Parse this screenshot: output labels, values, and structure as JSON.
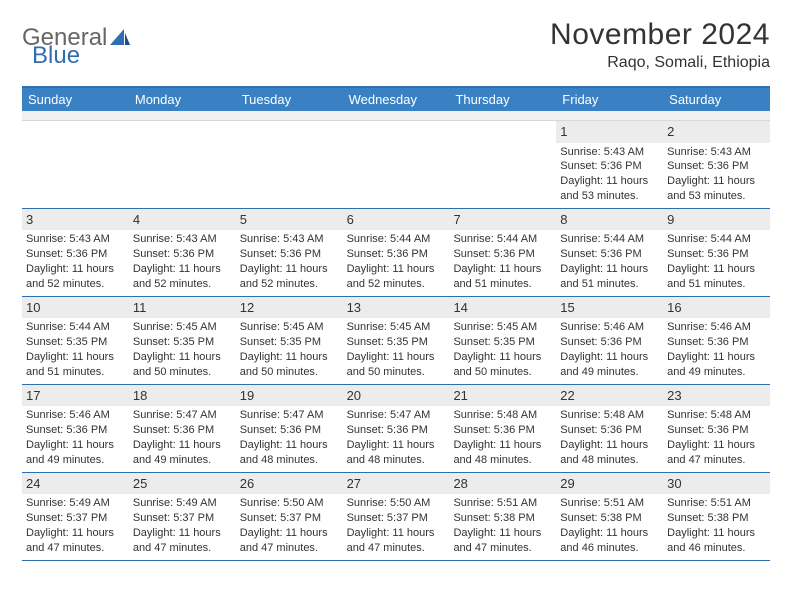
{
  "brand": {
    "part1": "General",
    "part2": "Blue"
  },
  "header": {
    "month": "November 2024",
    "location": "Raqo, Somali, Ethiopia"
  },
  "colors": {
    "header_bar": "#3a81c4",
    "rule": "#2f6fb0",
    "daynum_bg": "#ececec",
    "text": "#333333",
    "background": "#ffffff"
  },
  "weekdays": [
    "Sunday",
    "Monday",
    "Tuesday",
    "Wednesday",
    "Thursday",
    "Friday",
    "Saturday"
  ],
  "weeks": [
    [
      {
        "n": "",
        "sunrise": "",
        "sunset": "",
        "daylight1": "",
        "daylight2": ""
      },
      {
        "n": "",
        "sunrise": "",
        "sunset": "",
        "daylight1": "",
        "daylight2": ""
      },
      {
        "n": "",
        "sunrise": "",
        "sunset": "",
        "daylight1": "",
        "daylight2": ""
      },
      {
        "n": "",
        "sunrise": "",
        "sunset": "",
        "daylight1": "",
        "daylight2": ""
      },
      {
        "n": "",
        "sunrise": "",
        "sunset": "",
        "daylight1": "",
        "daylight2": ""
      },
      {
        "n": "1",
        "sunrise": "Sunrise: 5:43 AM",
        "sunset": "Sunset: 5:36 PM",
        "daylight1": "Daylight: 11 hours",
        "daylight2": "and 53 minutes."
      },
      {
        "n": "2",
        "sunrise": "Sunrise: 5:43 AM",
        "sunset": "Sunset: 5:36 PM",
        "daylight1": "Daylight: 11 hours",
        "daylight2": "and 53 minutes."
      }
    ],
    [
      {
        "n": "3",
        "sunrise": "Sunrise: 5:43 AM",
        "sunset": "Sunset: 5:36 PM",
        "daylight1": "Daylight: 11 hours",
        "daylight2": "and 52 minutes."
      },
      {
        "n": "4",
        "sunrise": "Sunrise: 5:43 AM",
        "sunset": "Sunset: 5:36 PM",
        "daylight1": "Daylight: 11 hours",
        "daylight2": "and 52 minutes."
      },
      {
        "n": "5",
        "sunrise": "Sunrise: 5:43 AM",
        "sunset": "Sunset: 5:36 PM",
        "daylight1": "Daylight: 11 hours",
        "daylight2": "and 52 minutes."
      },
      {
        "n": "6",
        "sunrise": "Sunrise: 5:44 AM",
        "sunset": "Sunset: 5:36 PM",
        "daylight1": "Daylight: 11 hours",
        "daylight2": "and 52 minutes."
      },
      {
        "n": "7",
        "sunrise": "Sunrise: 5:44 AM",
        "sunset": "Sunset: 5:36 PM",
        "daylight1": "Daylight: 11 hours",
        "daylight2": "and 51 minutes."
      },
      {
        "n": "8",
        "sunrise": "Sunrise: 5:44 AM",
        "sunset": "Sunset: 5:36 PM",
        "daylight1": "Daylight: 11 hours",
        "daylight2": "and 51 minutes."
      },
      {
        "n": "9",
        "sunrise": "Sunrise: 5:44 AM",
        "sunset": "Sunset: 5:36 PM",
        "daylight1": "Daylight: 11 hours",
        "daylight2": "and 51 minutes."
      }
    ],
    [
      {
        "n": "10",
        "sunrise": "Sunrise: 5:44 AM",
        "sunset": "Sunset: 5:35 PM",
        "daylight1": "Daylight: 11 hours",
        "daylight2": "and 51 minutes."
      },
      {
        "n": "11",
        "sunrise": "Sunrise: 5:45 AM",
        "sunset": "Sunset: 5:35 PM",
        "daylight1": "Daylight: 11 hours",
        "daylight2": "and 50 minutes."
      },
      {
        "n": "12",
        "sunrise": "Sunrise: 5:45 AM",
        "sunset": "Sunset: 5:35 PM",
        "daylight1": "Daylight: 11 hours",
        "daylight2": "and 50 minutes."
      },
      {
        "n": "13",
        "sunrise": "Sunrise: 5:45 AM",
        "sunset": "Sunset: 5:35 PM",
        "daylight1": "Daylight: 11 hours",
        "daylight2": "and 50 minutes."
      },
      {
        "n": "14",
        "sunrise": "Sunrise: 5:45 AM",
        "sunset": "Sunset: 5:35 PM",
        "daylight1": "Daylight: 11 hours",
        "daylight2": "and 50 minutes."
      },
      {
        "n": "15",
        "sunrise": "Sunrise: 5:46 AM",
        "sunset": "Sunset: 5:36 PM",
        "daylight1": "Daylight: 11 hours",
        "daylight2": "and 49 minutes."
      },
      {
        "n": "16",
        "sunrise": "Sunrise: 5:46 AM",
        "sunset": "Sunset: 5:36 PM",
        "daylight1": "Daylight: 11 hours",
        "daylight2": "and 49 minutes."
      }
    ],
    [
      {
        "n": "17",
        "sunrise": "Sunrise: 5:46 AM",
        "sunset": "Sunset: 5:36 PM",
        "daylight1": "Daylight: 11 hours",
        "daylight2": "and 49 minutes."
      },
      {
        "n": "18",
        "sunrise": "Sunrise: 5:47 AM",
        "sunset": "Sunset: 5:36 PM",
        "daylight1": "Daylight: 11 hours",
        "daylight2": "and 49 minutes."
      },
      {
        "n": "19",
        "sunrise": "Sunrise: 5:47 AM",
        "sunset": "Sunset: 5:36 PM",
        "daylight1": "Daylight: 11 hours",
        "daylight2": "and 48 minutes."
      },
      {
        "n": "20",
        "sunrise": "Sunrise: 5:47 AM",
        "sunset": "Sunset: 5:36 PM",
        "daylight1": "Daylight: 11 hours",
        "daylight2": "and 48 minutes."
      },
      {
        "n": "21",
        "sunrise": "Sunrise: 5:48 AM",
        "sunset": "Sunset: 5:36 PM",
        "daylight1": "Daylight: 11 hours",
        "daylight2": "and 48 minutes."
      },
      {
        "n": "22",
        "sunrise": "Sunrise: 5:48 AM",
        "sunset": "Sunset: 5:36 PM",
        "daylight1": "Daylight: 11 hours",
        "daylight2": "and 48 minutes."
      },
      {
        "n": "23",
        "sunrise": "Sunrise: 5:48 AM",
        "sunset": "Sunset: 5:36 PM",
        "daylight1": "Daylight: 11 hours",
        "daylight2": "and 47 minutes."
      }
    ],
    [
      {
        "n": "24",
        "sunrise": "Sunrise: 5:49 AM",
        "sunset": "Sunset: 5:37 PM",
        "daylight1": "Daylight: 11 hours",
        "daylight2": "and 47 minutes."
      },
      {
        "n": "25",
        "sunrise": "Sunrise: 5:49 AM",
        "sunset": "Sunset: 5:37 PM",
        "daylight1": "Daylight: 11 hours",
        "daylight2": "and 47 minutes."
      },
      {
        "n": "26",
        "sunrise": "Sunrise: 5:50 AM",
        "sunset": "Sunset: 5:37 PM",
        "daylight1": "Daylight: 11 hours",
        "daylight2": "and 47 minutes."
      },
      {
        "n": "27",
        "sunrise": "Sunrise: 5:50 AM",
        "sunset": "Sunset: 5:37 PM",
        "daylight1": "Daylight: 11 hours",
        "daylight2": "and 47 minutes."
      },
      {
        "n": "28",
        "sunrise": "Sunrise: 5:51 AM",
        "sunset": "Sunset: 5:38 PM",
        "daylight1": "Daylight: 11 hours",
        "daylight2": "and 47 minutes."
      },
      {
        "n": "29",
        "sunrise": "Sunrise: 5:51 AM",
        "sunset": "Sunset: 5:38 PM",
        "daylight1": "Daylight: 11 hours",
        "daylight2": "and 46 minutes."
      },
      {
        "n": "30",
        "sunrise": "Sunrise: 5:51 AM",
        "sunset": "Sunset: 5:38 PM",
        "daylight1": "Daylight: 11 hours",
        "daylight2": "and 46 minutes."
      }
    ]
  ]
}
